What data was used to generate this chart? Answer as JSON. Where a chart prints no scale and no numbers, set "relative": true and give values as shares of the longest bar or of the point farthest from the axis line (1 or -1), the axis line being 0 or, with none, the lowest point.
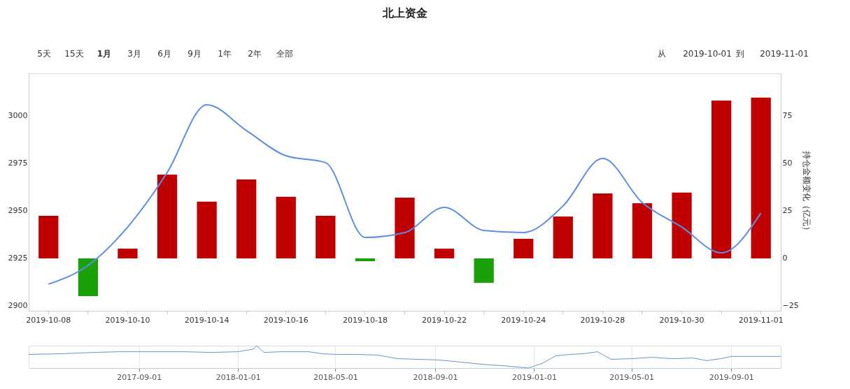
{
  "chart_data": [
    {
      "type": "bar",
      "title": "北上资金",
      "y2label": "持仓金额变化（亿元）",
      "categories": [
        "2019-10-08",
        null,
        "2019-10-10",
        null,
        "2019-10-14",
        null,
        "2019-10-16",
        null,
        "2019-10-18",
        null,
        "2019-10-22",
        null,
        "2019-10-24",
        null,
        "2019-10-28",
        null,
        "2019-10-30",
        null,
        "2019-11-01"
      ],
      "series": [
        {
          "type": "bar",
          "axis": "y2",
          "colors": [
            "#c00000",
            "#1aa10a",
            "#c00000",
            "#c00000",
            "#c00000",
            "#c00000",
            "#c00000",
            "#c00000",
            "#1aa10a",
            "#c00000",
            "#c00000",
            "#1aa10a",
            "#c00000",
            "#c00000",
            "#c00000",
            "#c00000",
            "#c00000",
            "#c00000",
            "#c00000"
          ],
          "values": [
            22.4,
            -19.9,
            5.1,
            44.1,
            29.8,
            41.5,
            32.4,
            22.4,
            -1.5,
            32,
            5.1,
            -12.9,
            10.3,
            22,
            34.2,
            29,
            34.6,
            83.1,
            84.6
          ]
        },
        {
          "type": "line",
          "color": "#5b8ee6",
          "values": [
            2911.4,
            2921.3,
            2941.5,
            2970.2,
            3005.9,
            2992.3,
            2979,
            2975.4,
            2936,
            2938.6,
            2951.8,
            2939.7,
            2938.6,
            2952.6,
            2977.6,
            2954.4,
            2941.5,
            2927.9,
            2948.9
          ]
        }
      ],
      "ylim": [
        2897.4,
        3022.4
      ],
      "yticks": [
        2900,
        2925,
        2950,
        2975,
        3000
      ],
      "y2lim": [
        -27.6,
        97.4
      ],
      "y2ticks": [
        -25,
        0,
        25,
        50,
        75
      ],
      "grid": false,
      "annotations": [
        "5天",
        "15天",
        "1月",
        "3月",
        "6月",
        "9月",
        "1年",
        "2年",
        "全部",
        "从",
        "2019-10-01",
        "到",
        "2019-11-01"
      ]
    },
    {
      "type": "line",
      "relative": true,
      "color": "#6a93c8",
      "x": [
        "2017-04-18",
        "2017-05-27",
        "2017-07-08",
        "2017-08-07",
        "2017-09-14",
        "2017-10-26",
        "2017-11-29",
        "2018-01-01",
        "2018-01-20",
        "2018-01-24",
        "2018-02-02",
        "2018-02-23",
        "2018-03-29",
        "2018-04-15",
        "2018-05-02",
        "2018-05-28",
        "2018-06-22",
        "2018-07-17",
        "2018-08-12",
        "2018-09-06",
        "2018-10-01",
        "2018-11-04",
        "2018-11-29",
        "2018-12-25",
        "2019-01-11",
        "2019-01-28",
        "2019-02-14",
        "2019-03-03",
        "2019-03-20",
        "2019-04-06",
        "2019-05-01",
        "2019-05-26",
        "2019-06-21",
        "2019-07-16",
        "2019-08-02",
        "2019-08-19",
        "2019-09-01",
        "2019-11-01"
      ],
      "values": [
        0.61,
        0.64,
        0.7,
        0.73,
        0.73,
        0.73,
        0.7,
        0.73,
        0.85,
        1,
        0.7,
        0.73,
        0.73,
        0.64,
        0.61,
        0.61,
        0.58,
        0.42,
        0.39,
        0.36,
        0.27,
        0.15,
        0.09,
        0,
        0.21,
        0.55,
        0.61,
        0.64,
        0.73,
        0.39,
        0.42,
        0.48,
        0.42,
        0.45,
        0.33,
        0.42,
        0.52,
        0.52
      ],
      "xlim": [
        "2017-04-18",
        "2019-11-01"
      ],
      "grid": "x",
      "xticks": [
        "2017-09-01",
        "2018-01-01",
        "2018-05-01",
        "2018-09-01",
        "2019-01-01",
        "2019-05-01",
        "2019-09-01"
      ]
    }
  ]
}
